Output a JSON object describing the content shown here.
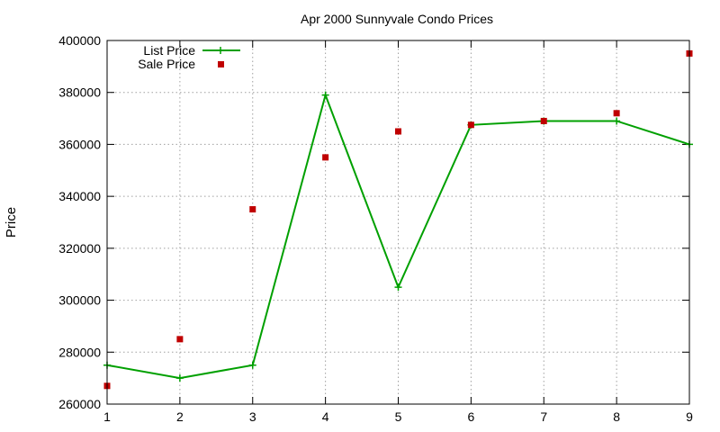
{
  "chart_data": {
    "type": "line",
    "title": "Apr 2000 Sunnyvale Condo Prices",
    "xlabel": "",
    "ylabel": "Price",
    "xlim": [
      1,
      9
    ],
    "ylim": [
      260000,
      400000
    ],
    "x_ticks": [
      "1",
      "2",
      "3",
      "4",
      "5",
      "6",
      "7",
      "8",
      "9"
    ],
    "y_ticks": [
      "260000",
      "280000",
      "300000",
      "320000",
      "340000",
      "360000",
      "380000",
      "400000"
    ],
    "grid": true,
    "legend_position": "top-left",
    "series": [
      {
        "name": "List Price",
        "style": "line-with-plus-markers",
        "color": "#00a000",
        "x": [
          1,
          2,
          3,
          4,
          5,
          6,
          7,
          8,
          9
        ],
        "values": [
          275000,
          270000,
          275000,
          379000,
          305000,
          367500,
          369000,
          369000,
          360000
        ]
      },
      {
        "name": "Sale Price",
        "style": "square-markers",
        "color": "#c00000",
        "x": [
          1,
          2,
          3,
          4,
          5,
          6,
          7,
          8,
          9
        ],
        "values": [
          267000,
          285000,
          335000,
          355000,
          365000,
          367500,
          369000,
          372000,
          395000
        ]
      }
    ]
  }
}
